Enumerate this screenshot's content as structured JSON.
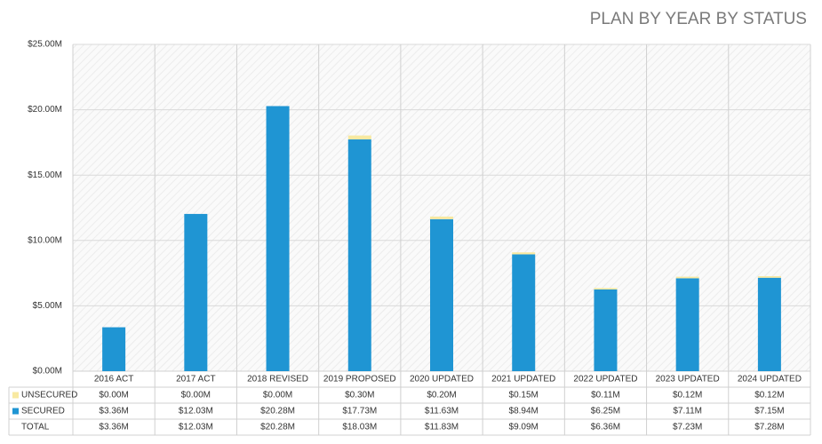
{
  "chart_data": {
    "type": "bar",
    "stacked": true,
    "title": "PLAN BY YEAR BY STATUS",
    "categories": [
      "2016 ACT",
      "2017 ACT",
      "2018 REVISED",
      "2019 PROPOSED",
      "2020 UPDATED",
      "2021 UPDATED",
      "2022 UPDATED",
      "2023 UPDATED",
      "2024 UPDATED"
    ],
    "series": [
      {
        "name": "UNSECURED",
        "color": "#f8e9a1",
        "values": [
          0,
          0,
          0,
          300000,
          200000,
          150000,
          110000,
          120000,
          120000
        ],
        "value_labels": [
          "$0.00M",
          "$0.00M",
          "$0.00M",
          "$0.30M",
          "$0.20M",
          "$0.15M",
          "$0.11M",
          "$0.12M",
          "$0.12M"
        ]
      },
      {
        "name": "SECURED",
        "color": "#1f95d3",
        "values": [
          3360000,
          12030000,
          20280000,
          17730000,
          11630000,
          8940000,
          6250000,
          7110000,
          7150000
        ],
        "value_labels": [
          "$3.36M",
          "$12.03M",
          "$20.28M",
          "$17.73M",
          "$11.63M",
          "$8.94M",
          "$6.25M",
          "$7.11M",
          "$7.15M"
        ]
      }
    ],
    "totals": {
      "name": "TOTAL",
      "labels": [
        "$3.36M",
        "$12.03M",
        "$20.28M",
        "$18.03M",
        "$11.83M",
        "$9.09M",
        "$6.36M",
        "$7.23M",
        "$7.28M"
      ]
    },
    "ylim": [
      0,
      25000000
    ],
    "yticks": [
      {
        "value": 0,
        "label": "$0.00M"
      },
      {
        "value": 5000000,
        "label": "$5.00M"
      },
      {
        "value": 10000000,
        "label": "$10.00M"
      },
      {
        "value": 15000000,
        "label": "$15.00M"
      },
      {
        "value": 20000000,
        "label": "$20.00M"
      },
      {
        "value": 25000000,
        "label": "$25.00M"
      }
    ],
    "grid": true
  }
}
